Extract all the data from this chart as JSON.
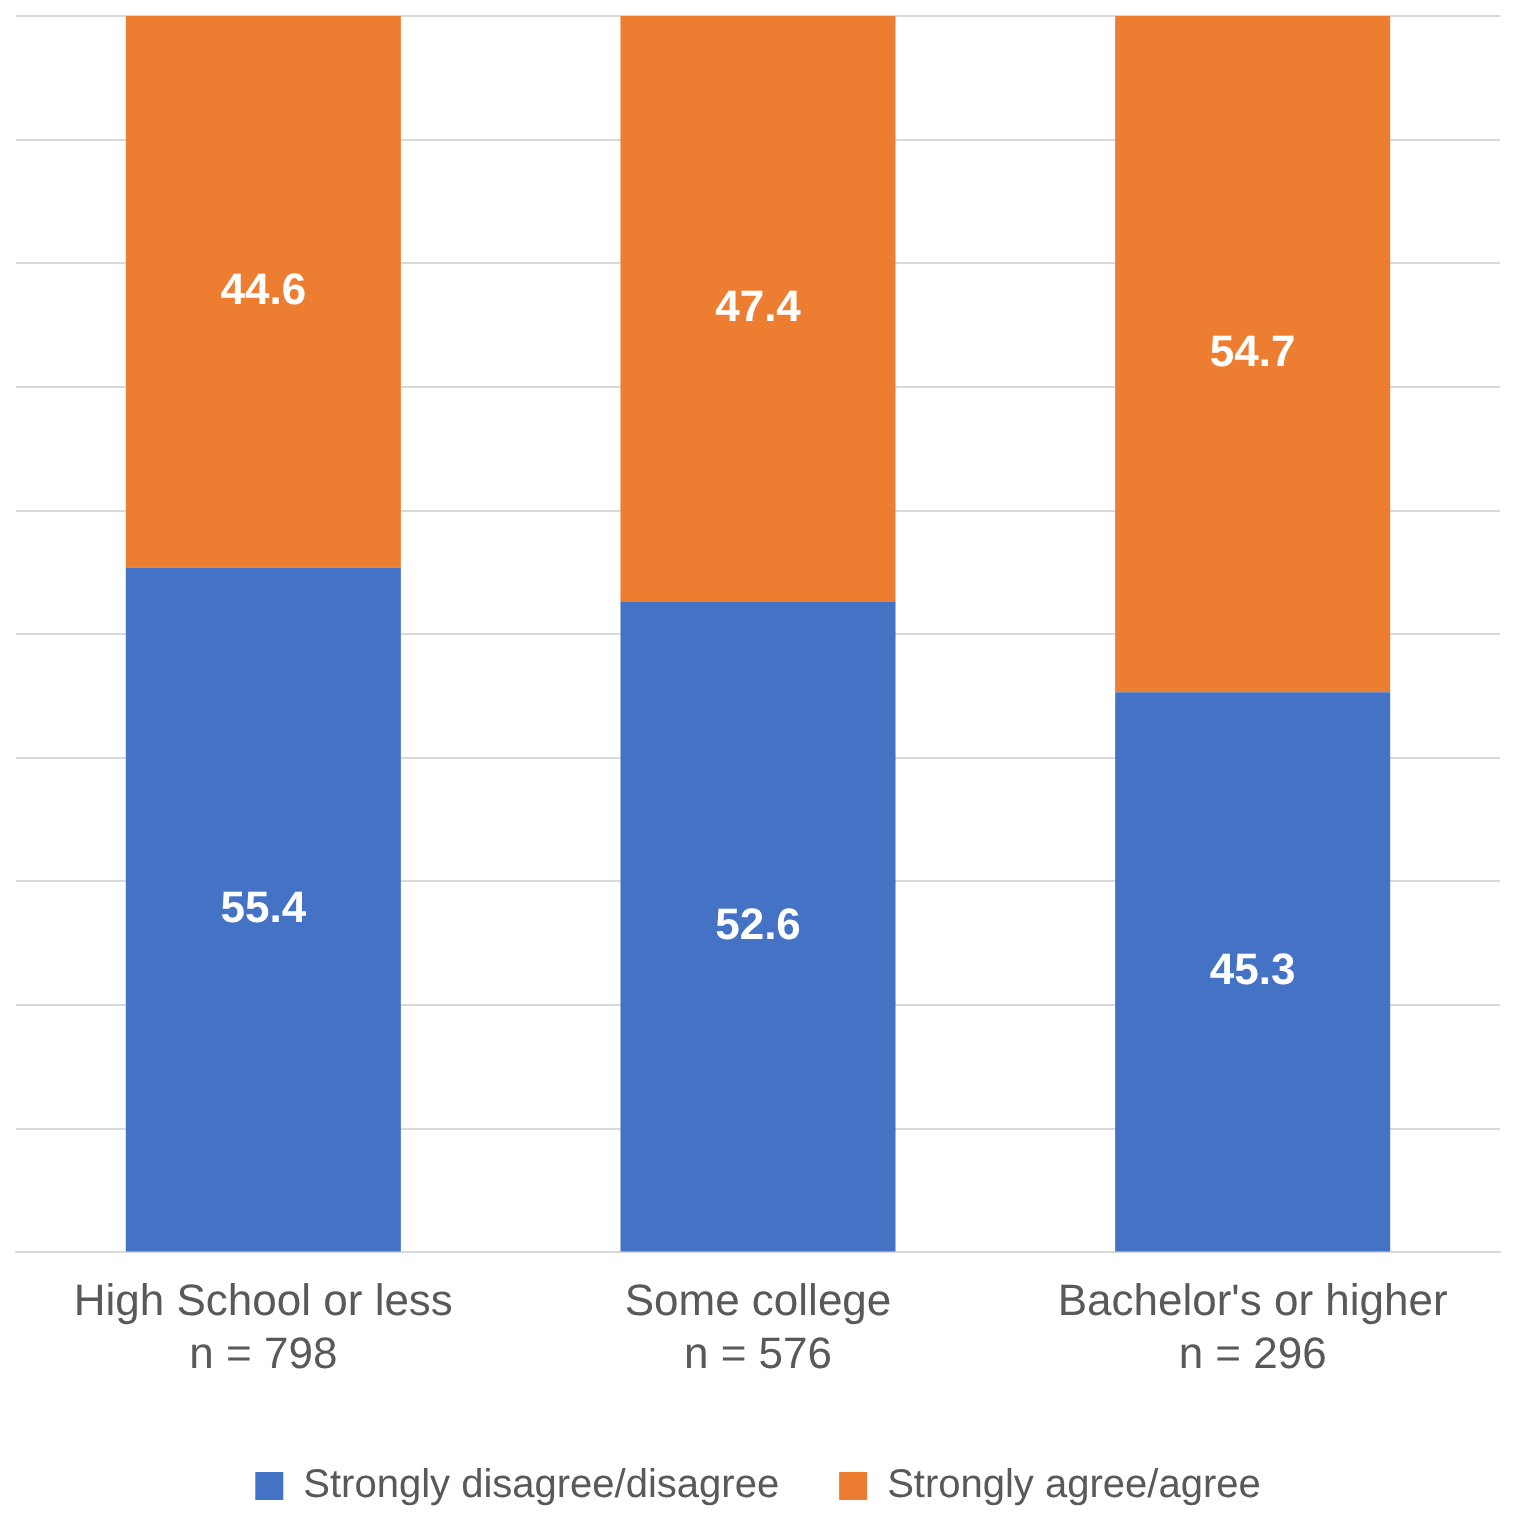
{
  "chart_data": {
    "type": "bar",
    "stacked": true,
    "categories": [
      "High School or less\nn = 798",
      "Some college\nn = 576",
      "Bachelor's or higher\nn = 296"
    ],
    "series": [
      {
        "name": "Strongly disagree/disagree",
        "color": "#4472c4",
        "values": [
          55.4,
          52.6,
          45.3
        ]
      },
      {
        "name": "Strongly agree/agree",
        "color": "#ed7d31",
        "values": [
          44.6,
          47.4,
          54.7
        ]
      }
    ],
    "ylim": [
      0,
      100
    ],
    "yticks": [
      {
        "value": 0,
        "label": null
      },
      {
        "value": 10,
        "label": null
      },
      {
        "value": 20,
        "label": null
      },
      {
        "value": 30,
        "label": null
      },
      {
        "value": 40,
        "label": null
      },
      {
        "value": 50,
        "label": null
      },
      {
        "value": 60,
        "label": null
      },
      {
        "value": 70,
        "label": null
      },
      {
        "value": 80,
        "label": null
      },
      {
        "value": 90,
        "label": null
      },
      {
        "value": 100,
        "label": null
      }
    ],
    "grid": "y",
    "tick_labels": "x",
    "data_labels": true,
    "legend": "bottom"
  }
}
